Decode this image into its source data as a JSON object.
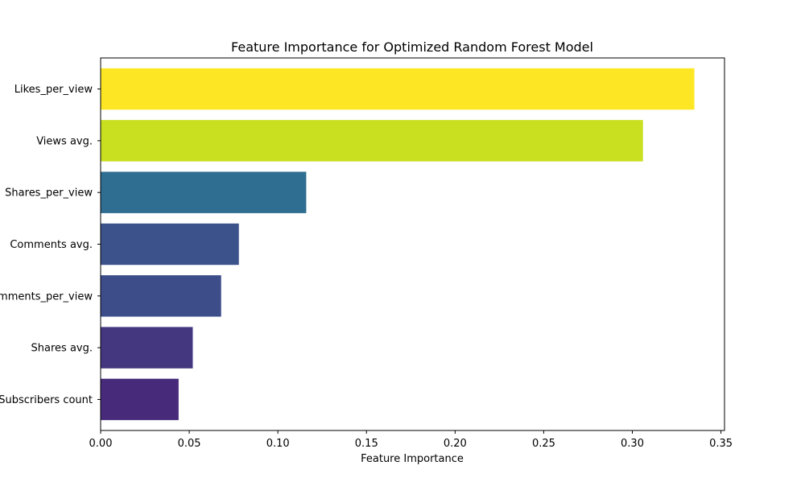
{
  "chart_data": {
    "type": "bar",
    "orientation": "horizontal",
    "title": "Feature Importance for Optimized Random Forest Model",
    "xlabel": "Feature Importance",
    "ylabel": "",
    "xlim": [
      0.0,
      0.352
    ],
    "xticks": [
      0.0,
      0.05,
      0.1,
      0.15,
      0.2,
      0.25,
      0.3,
      0.35
    ],
    "xtick_labels": [
      "0.00",
      "0.05",
      "0.10",
      "0.15",
      "0.20",
      "0.25",
      "0.30",
      "0.35"
    ],
    "categories": [
      "Likes_per_view",
      "Views avg.",
      "Shares_per_view",
      "Comments avg.",
      "Comments_per_view",
      "Shares avg.",
      "Subscribers count"
    ],
    "values": [
      0.335,
      0.306,
      0.116,
      0.078,
      0.068,
      0.052,
      0.044
    ],
    "colors": [
      "#fde725",
      "#c8e020",
      "#2f6e90",
      "#3b528b",
      "#3c4d8a",
      "#45377f",
      "#472b7a"
    ],
    "grid": false,
    "legend": "none"
  }
}
